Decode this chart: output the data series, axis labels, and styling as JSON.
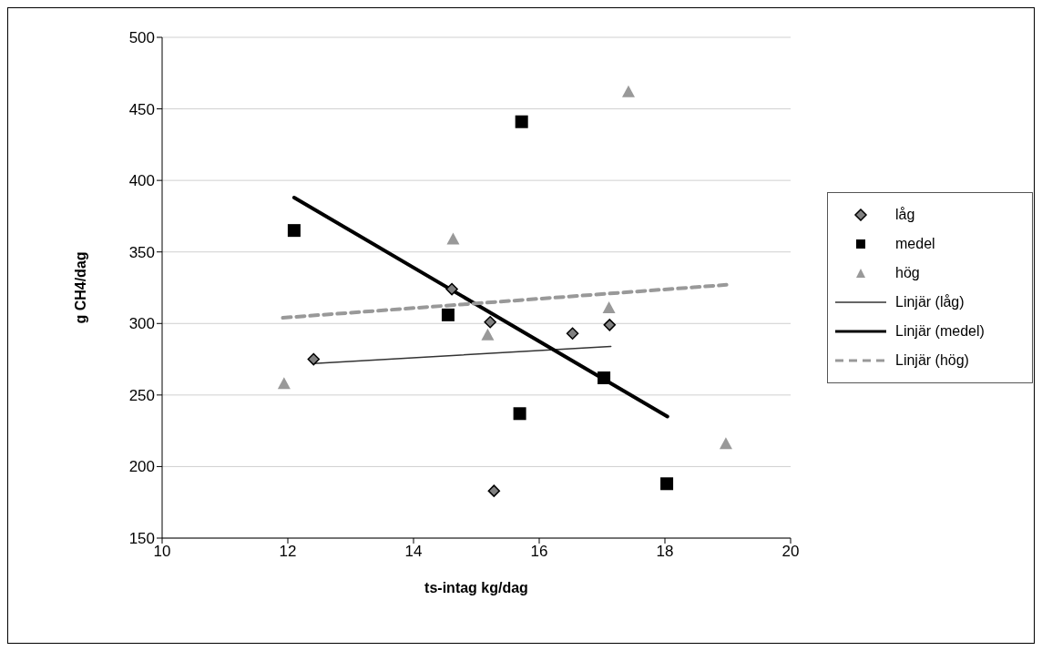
{
  "chart_data": {
    "type": "scatter",
    "xlabel": "ts-intag kg/dag",
    "ylabel": "g CH4/dag",
    "xlim": [
      10,
      20
    ],
    "xticks": [
      10,
      12,
      14,
      16,
      18,
      20
    ],
    "ylim": [
      150,
      500
    ],
    "yticks": [
      150,
      200,
      250,
      300,
      350,
      400,
      450,
      500
    ],
    "grid": "y",
    "legend": "right",
    "series": [
      {
        "name": "låg",
        "marker": "diamond",
        "color": "#808080",
        "x": [
          12.41,
          14.61,
          15.22,
          15.28,
          16.53,
          17.12
        ],
        "values": [
          275,
          324,
          301,
          183,
          293,
          299
        ]
      },
      {
        "name": "medel",
        "marker": "square",
        "color": "#000000",
        "x": [
          12.1,
          15.72,
          14.55,
          15.69,
          17.03,
          18.03
        ],
        "values": [
          365,
          441,
          306,
          237,
          262,
          188
        ]
      },
      {
        "name": "hög",
        "marker": "triangle",
        "color": "#999999",
        "x": [
          11.94,
          14.63,
          17.42,
          15.18,
          17.11,
          18.97
        ],
        "values": [
          258,
          359,
          462,
          292,
          311,
          216
        ]
      },
      {
        "name": "Linjär (låg)",
        "type": "line",
        "marker": "none",
        "line_style": "solid",
        "color": "#333333",
        "x": [
          12.41,
          17.14
        ],
        "values": [
          272,
          284
        ]
      },
      {
        "name": "Linjär (medel)",
        "type": "line",
        "marker": "none",
        "line_style": "solid",
        "color": "#000000",
        "x": [
          12.1,
          18.04
        ],
        "values": [
          388,
          235
        ]
      },
      {
        "name": "Linjär (hög)",
        "type": "line",
        "marker": "none",
        "line_style": "dashed",
        "color": "#999999",
        "x": [
          11.92,
          18.98
        ],
        "values": [
          304,
          327
        ]
      }
    ]
  }
}
